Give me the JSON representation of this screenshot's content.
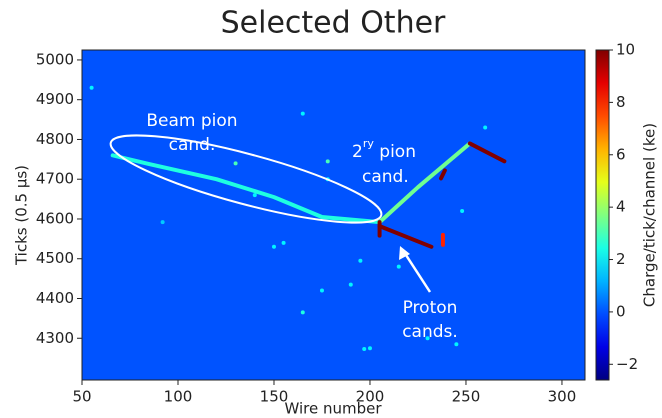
{
  "chart_data": {
    "type": "heatmap",
    "title": "Selected Other",
    "x_label": "Wire number",
    "y_label": "Ticks (0.5 μs)",
    "colorbar_label": "Charge/tick/channel (ke)",
    "colormap": "jet",
    "xlim": [
      50,
      312
    ],
    "ylim": [
      4195,
      5025
    ],
    "clim": [
      -2.6,
      10
    ],
    "xticks": [
      50,
      100,
      150,
      200,
      250,
      300
    ],
    "yticks": [
      4300,
      4400,
      4500,
      4600,
      4700,
      4800,
      4900,
      5000
    ],
    "cticks": [
      {
        "value": -2,
        "label": "−2"
      },
      0,
      2,
      4,
      6,
      8,
      10
    ],
    "background": 0,
    "tracks": [
      {
        "x": [
          66,
          85,
          120,
          150,
          175,
          205
        ],
        "y": [
          4760,
          4738,
          4700,
          4655,
          4605,
          4592
        ],
        "charge": 2.5
      },
      {
        "x": [
          205,
          225,
          252
        ],
        "y": [
          4592,
          4680,
          4790
        ],
        "charge": 3.5
      },
      {
        "x": [
          252,
          270
        ],
        "y": [
          4790,
          4745
        ],
        "charge": 10
      },
      {
        "x": [
          205,
          232
        ],
        "y": [
          4582,
          4530
        ],
        "charge": 10
      },
      {
        "x": [
          205,
          205
        ],
        "y": [
          4592,
          4558
        ],
        "charge": 10
      },
      {
        "x": [
          237,
          239
        ],
        "y": [
          4702,
          4722
        ],
        "charge": 10
      },
      {
        "x": [
          238,
          238
        ],
        "y": [
          4560,
          4535
        ],
        "charge": 8
      }
    ],
    "spots": [
      {
        "x": 130,
        "y": 4740,
        "charge": 3
      },
      {
        "x": 178,
        "y": 4745,
        "charge": 3
      },
      {
        "x": 178,
        "y": 4700,
        "charge": 2
      },
      {
        "x": 155,
        "y": 4540,
        "charge": 2
      },
      {
        "x": 140,
        "y": 4660,
        "charge": 2
      },
      {
        "x": 190,
        "y": 4435,
        "charge": 2
      },
      {
        "x": 195,
        "y": 4495,
        "charge": 2
      },
      {
        "x": 165,
        "y": 4365,
        "charge": 2.5
      },
      {
        "x": 175,
        "y": 4420,
        "charge": 2
      },
      {
        "x": 197,
        "y": 4273,
        "charge": 2
      },
      {
        "x": 200,
        "y": 4275,
        "charge": 2
      },
      {
        "x": 150,
        "y": 4530,
        "charge": 2
      },
      {
        "x": 92,
        "y": 4592,
        "charge": 1.5
      },
      {
        "x": 230,
        "y": 4300,
        "charge": 2
      },
      {
        "x": 215,
        "y": 4480,
        "charge": 2
      },
      {
        "x": 248,
        "y": 4620,
        "charge": 2
      },
      {
        "x": 260,
        "y": 4830,
        "charge": 2
      },
      {
        "x": 245,
        "y": 4285,
        "charge": 2
      },
      {
        "x": 55,
        "y": 4930,
        "charge": 2
      },
      {
        "x": 165,
        "y": 4865,
        "charge": 2
      }
    ],
    "annotations": {
      "beam": [
        "Beam pion",
        "cand."
      ],
      "secondary": {
        "base": "2",
        "sup": "ry",
        "rest": " pion",
        "line2": "cand."
      },
      "proton": [
        "Proton",
        "cands."
      ]
    }
  }
}
